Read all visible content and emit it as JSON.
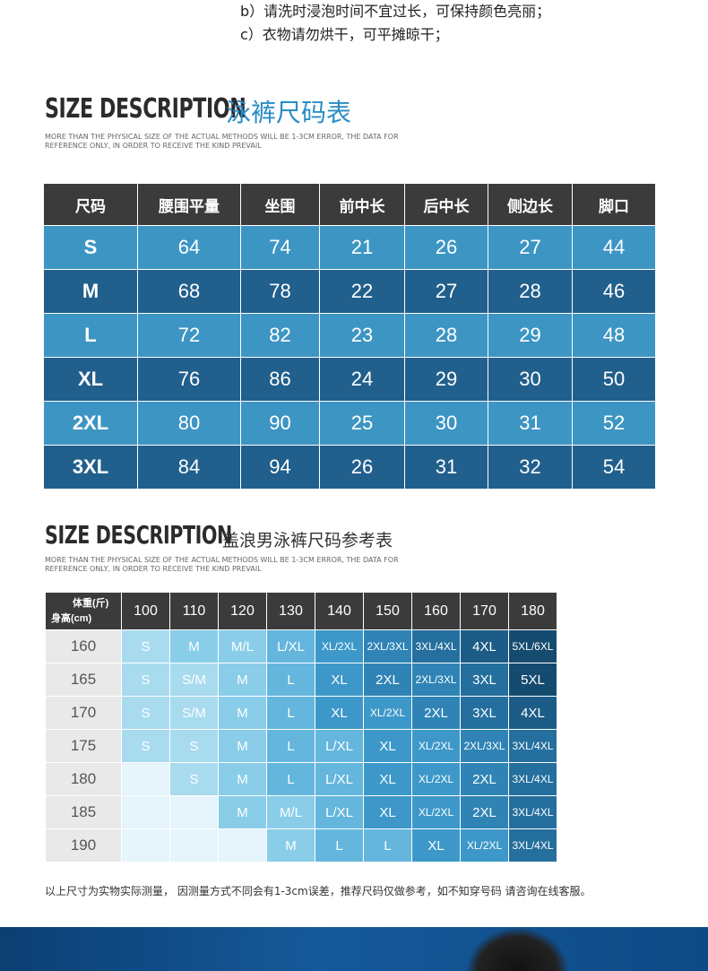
{
  "care_notes": [
    "b）请洗时浸泡时间不宜过长，可保持颜色亮丽；",
    "c）衣物请勿烘干，可平摊晾干；"
  ],
  "section1": {
    "title_en": "SIZE DESCRIPTION",
    "title_cn": "泳裤尺码表",
    "note": "MORE THAN THE PHYSICAL SIZE OF THE ACTUAL METHODS WILL BE 1-3CM ERROR, THE DATA FOR REFERENCE ONLY, IN ORDER TO RECEIVE THE KIND PREVAIL",
    "headers": [
      "尺码",
      "腰围平量",
      "坐围",
      "前中长",
      "后中长",
      "侧边长",
      "脚口"
    ],
    "rows": [
      [
        "S",
        "64",
        "74",
        "21",
        "26",
        "27",
        "44"
      ],
      [
        "M",
        "68",
        "78",
        "22",
        "27",
        "28",
        "46"
      ],
      [
        "L",
        "72",
        "82",
        "23",
        "28",
        "29",
        "48"
      ],
      [
        "XL",
        "76",
        "86",
        "24",
        "29",
        "30",
        "50"
      ],
      [
        "2XL",
        "80",
        "90",
        "25",
        "30",
        "31",
        "52"
      ],
      [
        "3XL",
        "84",
        "94",
        "26",
        "31",
        "32",
        "54"
      ]
    ]
  },
  "section2": {
    "title_en": "SIZE DESCRIPTION",
    "title_cn": "盖浪男泳裤尺码参考表",
    "note": "MORE THAN THE PHYSICAL SIZE OF THE ACTUAL METHODS WILL BE 1-3CM ERROR, THE DATA FOR REFERENCE ONLY, IN ORDER TO RECEIVE THE KIND PREVAIL",
    "corner_weight": "体重(斤)",
    "corner_height": "身高(cm)",
    "weights": [
      "100",
      "110",
      "120",
      "130",
      "140",
      "150",
      "160",
      "170",
      "180"
    ],
    "rows": [
      {
        "height": "160",
        "cells": [
          "S",
          "M",
          "M/L",
          "L/XL",
          "XL/2XL",
          "2XL/3XL",
          "3XL/4XL",
          "4XL",
          "5XL/6XL"
        ]
      },
      {
        "height": "165",
        "cells": [
          "S",
          "S/M",
          "M",
          "L",
          "XL",
          "2XL",
          "2XL/3XL",
          "3XL",
          "5XL"
        ]
      },
      {
        "height": "170",
        "cells": [
          "S",
          "S/M",
          "M",
          "L",
          "XL",
          "XL/2XL",
          "2XL",
          "3XL",
          "4XL"
        ]
      },
      {
        "height": "175",
        "cells": [
          "S",
          "S",
          "M",
          "L",
          "L/XL",
          "XL",
          "XL/2XL",
          "2XL/3XL",
          "3XL/4XL"
        ]
      },
      {
        "height": "180",
        "cells": [
          "",
          "S",
          "M",
          "L",
          "L/XL",
          "XL",
          "XL/2XL",
          "2XL",
          "3XL/4XL"
        ]
      },
      {
        "height": "185",
        "cells": [
          "",
          "",
          "M",
          "M/L",
          "L/XL",
          "XL",
          "XL/2XL",
          "2XL",
          "3XL/4XL"
        ]
      },
      {
        "height": "190",
        "cells": [
          "",
          "",
          "",
          "M",
          "L",
          "L",
          "XL",
          "XL/2XL",
          "3XL/4XL"
        ]
      }
    ]
  },
  "footer_note": "以上尺寸为实物实际测量， 因测量方式不同会有1-3cm误差，推荐尺码仅做参考，如不知穿号码 请咨询在线客服。",
  "colors": {
    "accent": "#2a8cc7",
    "header_dark": "#3b3b3b",
    "row_light": "#3d95c3",
    "row_dark": "#215f8c"
  }
}
